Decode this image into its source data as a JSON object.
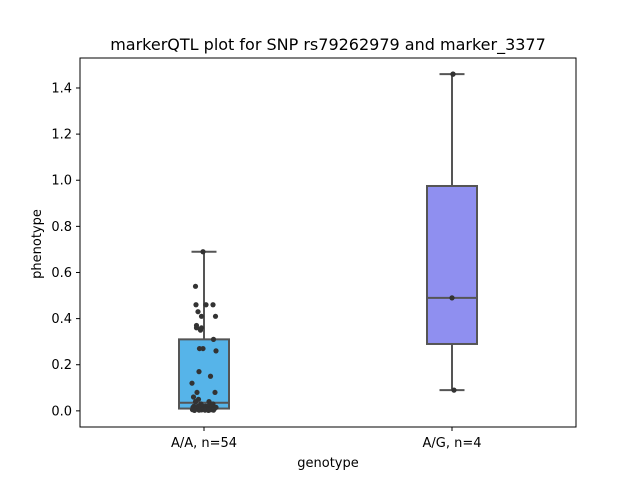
{
  "chart_data": {
    "type": "box",
    "title": "markerQTL plot for SNP rs79262979 and marker_3377",
    "xlabel": "genotype",
    "ylabel": "phenotype",
    "ylim": [
      -0.07,
      1.53
    ],
    "yticks": [
      "0.0",
      "0.2",
      "0.4",
      "0.6",
      "0.8",
      "1.0",
      "1.2",
      "1.4"
    ],
    "ytick_values": [
      0.0,
      0.2,
      0.4,
      0.6,
      0.8,
      1.0,
      1.2,
      1.4
    ],
    "categories": [
      "A/A, n=54",
      "A/G, n=4"
    ],
    "boxes": [
      {
        "category": "A/A, n=54",
        "color": "#56b4e9",
        "whisker_low": 0.005,
        "q1": 0.01,
        "median": 0.035,
        "q3": 0.31,
        "whisker_high": 0.69,
        "points": [
          [
            -0.02,
            0.69
          ],
          [
            -0.17,
            0.54
          ],
          [
            -0.16,
            0.46
          ],
          [
            0.04,
            0.46
          ],
          [
            0.18,
            0.46
          ],
          [
            -0.12,
            0.43
          ],
          [
            -0.05,
            0.41
          ],
          [
            0.23,
            0.41
          ],
          [
            -0.15,
            0.37
          ],
          [
            -0.15,
            0.36
          ],
          [
            -0.07,
            0.35
          ],
          [
            -0.05,
            0.36
          ],
          [
            0.19,
            0.31
          ],
          [
            -0.09,
            0.27
          ],
          [
            -0.02,
            0.27
          ],
          [
            0.24,
            0.26
          ],
          [
            -0.1,
            0.17
          ],
          [
            0.13,
            0.15
          ],
          [
            -0.24,
            0.12
          ],
          [
            0.22,
            0.08
          ],
          [
            -0.14,
            0.08
          ],
          [
            -0.21,
            0.06
          ],
          [
            -0.11,
            0.05
          ],
          [
            -0.17,
            0.04
          ],
          [
            0.1,
            0.04
          ],
          [
            -0.06,
            0.03
          ],
          [
            0.14,
            0.03
          ],
          [
            0.18,
            0.03
          ],
          [
            -0.2,
            0.02
          ],
          [
            -0.12,
            0.02
          ],
          [
            -0.03,
            0.02
          ],
          [
            0.03,
            0.02
          ],
          [
            0.08,
            0.02
          ],
          [
            0.16,
            0.02
          ],
          [
            -0.22,
            0.015
          ],
          [
            -0.18,
            0.01
          ],
          [
            -0.08,
            0.01
          ],
          [
            -0.01,
            0.01
          ],
          [
            0.05,
            0.01
          ],
          [
            0.12,
            0.01
          ],
          [
            0.2,
            0.01
          ],
          [
            0.24,
            0.015
          ],
          [
            -0.15,
            0.008
          ],
          [
            0.0,
            0.008
          ],
          [
            0.07,
            0.006
          ],
          [
            -0.23,
            0.005
          ],
          [
            0.15,
            0.005
          ],
          [
            -0.05,
            0.004
          ],
          [
            0.11,
            0.004
          ],
          [
            -0.1,
            0.003
          ],
          [
            0.02,
            0.003
          ],
          [
            0.19,
            0.003
          ],
          [
            -0.19,
            0.002
          ],
          [
            0.09,
            0.002
          ]
        ]
      },
      {
        "category": "A/G, n=4",
        "color": "#8f8ff0",
        "whisker_low": 0.09,
        "q1": 0.29,
        "median": 0.49,
        "q3": 0.975,
        "whisker_high": 1.46,
        "points": [
          [
            0.02,
            1.46
          ],
          [
            0.0,
            0.49
          ],
          [
            0.04,
            0.09
          ],
          [
            0.02,
            1.46
          ]
        ]
      }
    ]
  }
}
